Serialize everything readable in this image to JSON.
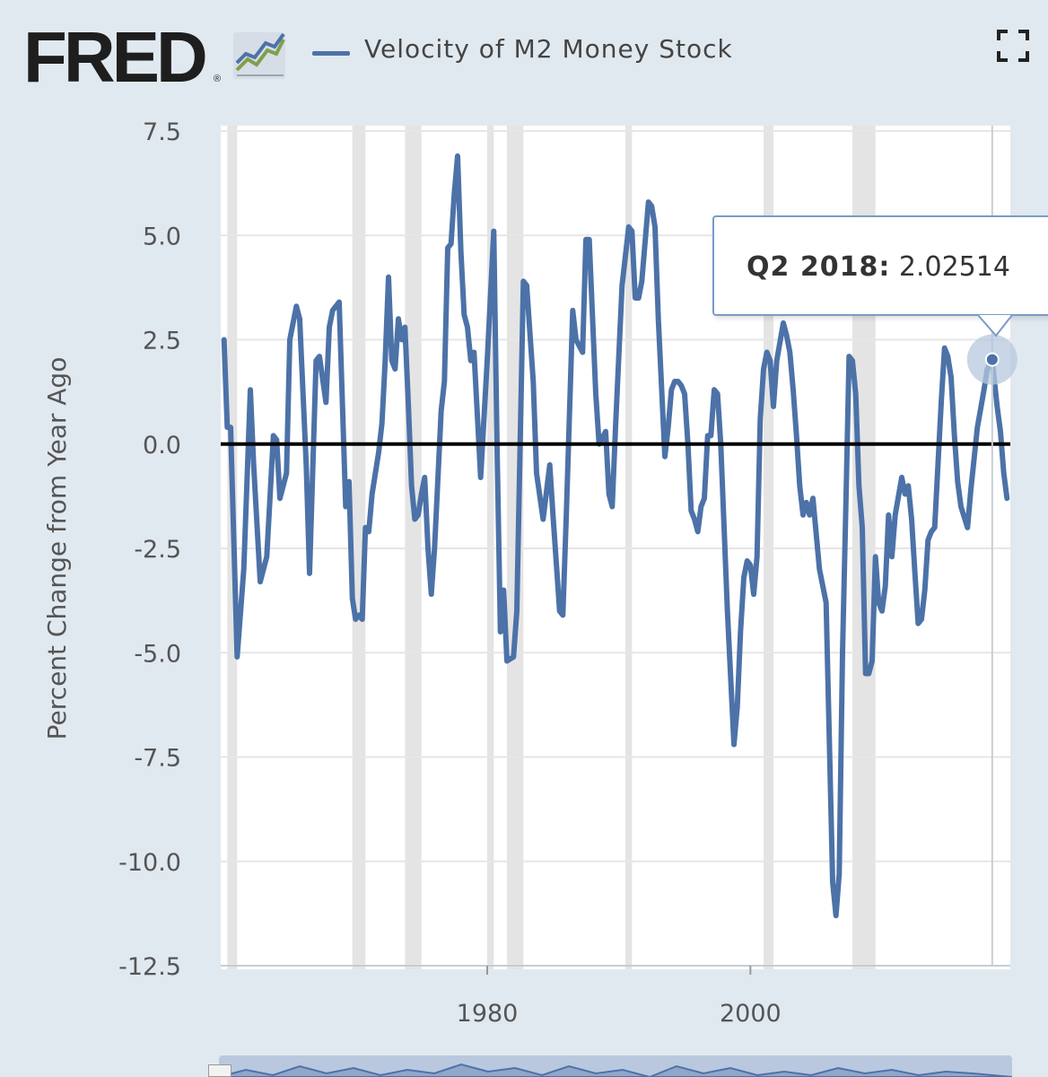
{
  "header": {
    "logo_text": "FRED",
    "logo_reg": "®",
    "logo_icon": "line-chart-icon",
    "series_label": "Velocity of M2 Money Stock",
    "expand_icon": "fullscreen-expand-icon"
  },
  "tooltip": {
    "period": "Q2 2018:",
    "value": "2.02514"
  },
  "colors": {
    "series": "#4c72a8",
    "zero_line": "#000000",
    "recession": "#e4e4e4",
    "grid": "#e6e6e6",
    "background": "#e1e9f0"
  },
  "chart_data": {
    "type": "line",
    "title": "Velocity of M2 Money Stock",
    "xlabel": "",
    "ylabel": "Percent Change from Year Ago",
    "xlim": [
      1959.75,
      2019.75
    ],
    "ylim": [
      -12.5,
      7.5
    ],
    "yticks": [
      7.5,
      5.0,
      2.5,
      0.0,
      -2.5,
      -5.0,
      -7.5,
      -10.0,
      -12.5
    ],
    "ytick_labels": [
      "7.5",
      "5.0",
      "2.5",
      "0.0",
      "-2.5",
      "-5.0",
      "-7.5",
      "-10.0",
      "-12.5"
    ],
    "xticks": [
      1980,
      2000
    ],
    "xtick_labels": [
      "1980",
      "2000"
    ],
    "recessions": [
      [
        1960.25,
        1961.0
      ],
      [
        1969.75,
        1970.75
      ],
      [
        1973.75,
        1975.0
      ],
      [
        1980.0,
        1980.5
      ],
      [
        1981.5,
        1982.75
      ],
      [
        1990.5,
        1991.0
      ],
      [
        2001.0,
        2001.75
      ],
      [
        2007.75,
        2009.5
      ]
    ],
    "highlight": {
      "x": 2018.375,
      "y": 2.02514,
      "label": "Q2 2018: 2.02514"
    },
    "series": [
      {
        "name": "Velocity of M2 Money Stock",
        "points": [
          [
            1960.0,
            2.5
          ],
          [
            1960.25,
            0.4
          ],
          [
            1960.5,
            0.4
          ],
          [
            1961.0,
            -5.1
          ],
          [
            1961.5,
            -3.0
          ],
          [
            1962.0,
            1.3
          ],
          [
            1962.25,
            -0.5
          ],
          [
            1962.75,
            -3.3
          ],
          [
            1963.25,
            -2.7
          ],
          [
            1963.75,
            0.2
          ],
          [
            1964.0,
            0.1
          ],
          [
            1964.25,
            -1.3
          ],
          [
            1964.75,
            -0.7
          ],
          [
            1965.0,
            2.5
          ],
          [
            1965.5,
            3.3
          ],
          [
            1965.75,
            3.0
          ],
          [
            1966.25,
            -0.5
          ],
          [
            1966.5,
            -3.1
          ],
          [
            1967.0,
            2.0
          ],
          [
            1967.25,
            2.1
          ],
          [
            1967.75,
            1.0
          ],
          [
            1968.0,
            2.8
          ],
          [
            1968.25,
            3.2
          ],
          [
            1968.75,
            3.4
          ],
          [
            1969.25,
            -1.5
          ],
          [
            1969.5,
            -0.9
          ],
          [
            1969.75,
            -3.7
          ],
          [
            1970.0,
            -4.2
          ],
          [
            1970.25,
            -4.1
          ],
          [
            1970.5,
            -4.2
          ],
          [
            1970.75,
            -2.0
          ],
          [
            1971.0,
            -2.1
          ],
          [
            1971.25,
            -1.2
          ],
          [
            1971.75,
            -0.2
          ],
          [
            1972.0,
            0.5
          ],
          [
            1972.25,
            2.0
          ],
          [
            1972.5,
            4.0
          ],
          [
            1972.75,
            2.0
          ],
          [
            1973.0,
            1.8
          ],
          [
            1973.25,
            3.0
          ],
          [
            1973.5,
            2.5
          ],
          [
            1973.75,
            2.8
          ],
          [
            1974.0,
            1.0
          ],
          [
            1974.25,
            -1.0
          ],
          [
            1974.5,
            -1.8
          ],
          [
            1974.75,
            -1.7
          ],
          [
            1975.0,
            -1.2
          ],
          [
            1975.25,
            -0.8
          ],
          [
            1975.5,
            -2.5
          ],
          [
            1975.75,
            -3.6
          ],
          [
            1976.0,
            -2.5
          ],
          [
            1976.5,
            0.8
          ],
          [
            1976.75,
            1.5
          ],
          [
            1977.0,
            4.7
          ],
          [
            1977.25,
            4.8
          ],
          [
            1977.5,
            6.0
          ],
          [
            1977.75,
            6.9
          ],
          [
            1978.0,
            4.6
          ],
          [
            1978.25,
            3.1
          ],
          [
            1978.5,
            2.8
          ],
          [
            1978.75,
            2.0
          ],
          [
            1979.0,
            2.2
          ],
          [
            1979.5,
            -0.8
          ],
          [
            1980.0,
            2.0
          ],
          [
            1980.5,
            5.1
          ],
          [
            1980.75,
            -0.1
          ],
          [
            1981.0,
            -4.5
          ],
          [
            1981.25,
            -3.5
          ],
          [
            1981.5,
            -5.2
          ],
          [
            1982.0,
            -5.1
          ],
          [
            1982.25,
            -4.0
          ],
          [
            1982.75,
            3.9
          ],
          [
            1983.0,
            3.8
          ],
          [
            1983.5,
            1.5
          ],
          [
            1983.75,
            -0.7
          ],
          [
            1984.25,
            -1.8
          ],
          [
            1984.75,
            -0.5
          ],
          [
            1985.0,
            -1.7
          ],
          [
            1985.5,
            -4.0
          ],
          [
            1985.75,
            -4.1
          ],
          [
            1986.0,
            -1.8
          ],
          [
            1986.5,
            3.2
          ],
          [
            1986.75,
            2.5
          ],
          [
            1987.25,
            2.2
          ],
          [
            1987.5,
            4.9
          ],
          [
            1987.75,
            4.9
          ],
          [
            1988.25,
            1.2
          ],
          [
            1988.5,
            0.0
          ],
          [
            1989.0,
            0.3
          ],
          [
            1989.25,
            -1.2
          ],
          [
            1989.5,
            -1.5
          ],
          [
            1989.75,
            0.4
          ],
          [
            1990.25,
            3.8
          ],
          [
            1990.75,
            5.2
          ],
          [
            1991.0,
            5.1
          ],
          [
            1991.25,
            3.5
          ],
          [
            1991.5,
            3.5
          ],
          [
            1991.75,
            3.9
          ],
          [
            1992.25,
            5.8
          ],
          [
            1992.5,
            5.7
          ],
          [
            1992.75,
            5.2
          ],
          [
            1993.0,
            3.0
          ],
          [
            1993.5,
            -0.3
          ],
          [
            1993.75,
            0.4
          ],
          [
            1994.0,
            1.3
          ],
          [
            1994.25,
            1.5
          ],
          [
            1994.5,
            1.5
          ],
          [
            1994.75,
            1.4
          ],
          [
            1995.0,
            1.2
          ],
          [
            1995.25,
            0.0
          ],
          [
            1995.5,
            -1.6
          ],
          [
            1995.75,
            -1.8
          ],
          [
            1996.0,
            -2.1
          ],
          [
            1996.25,
            -1.5
          ],
          [
            1996.5,
            -1.3
          ],
          [
            1996.75,
            0.2
          ],
          [
            1997.0,
            0.2
          ],
          [
            1997.25,
            1.3
          ],
          [
            1997.5,
            1.2
          ],
          [
            1997.75,
            0.0
          ],
          [
            1998.0,
            -2.0
          ],
          [
            1998.25,
            -4.0
          ],
          [
            1998.75,
            -7.2
          ],
          [
            1999.0,
            -6.3
          ],
          [
            1999.25,
            -4.5
          ],
          [
            1999.5,
            -3.2
          ],
          [
            1999.75,
            -2.8
          ],
          [
            2000.0,
            -2.9
          ],
          [
            2000.25,
            -3.6
          ],
          [
            2000.5,
            -2.7
          ],
          [
            2000.75,
            0.6
          ],
          [
            2001.0,
            1.8
          ],
          [
            2001.25,
            2.2
          ],
          [
            2001.5,
            2.0
          ],
          [
            2001.75,
            0.9
          ],
          [
            2002.0,
            2.0
          ],
          [
            2002.5,
            2.9
          ],
          [
            2002.75,
            2.6
          ],
          [
            2003.0,
            2.2
          ],
          [
            2003.25,
            1.3
          ],
          [
            2003.5,
            0.2
          ],
          [
            2003.75,
            -1.0
          ],
          [
            2004.0,
            -1.7
          ],
          [
            2004.25,
            -1.4
          ],
          [
            2004.5,
            -1.7
          ],
          [
            2004.75,
            -1.3
          ],
          [
            2005.25,
            -3.0
          ],
          [
            2005.75,
            -3.8
          ],
          [
            2006.25,
            -10.5
          ],
          [
            2006.5,
            -11.3
          ],
          [
            2006.75,
            -10.3
          ],
          [
            2007.0,
            -5.0
          ],
          [
            2007.25,
            -1.5
          ],
          [
            2007.5,
            2.1
          ],
          [
            2007.75,
            2.0
          ],
          [
            2008.0,
            1.2
          ],
          [
            2008.25,
            -1.0
          ],
          [
            2008.5,
            -2.0
          ],
          [
            2008.75,
            -5.5
          ],
          [
            2009.0,
            -5.5
          ],
          [
            2009.25,
            -5.2
          ],
          [
            2009.5,
            -2.7
          ],
          [
            2009.75,
            -3.8
          ],
          [
            2010.0,
            -4.0
          ],
          [
            2010.25,
            -3.4
          ],
          [
            2010.5,
            -1.7
          ],
          [
            2010.75,
            -2.7
          ],
          [
            2011.0,
            -1.7
          ],
          [
            2011.5,
            -0.8
          ],
          [
            2011.75,
            -1.2
          ],
          [
            2012.0,
            -1.0
          ],
          [
            2012.25,
            -1.8
          ],
          [
            2012.5,
            -3.1
          ],
          [
            2012.75,
            -4.3
          ],
          [
            2013.0,
            -4.2
          ],
          [
            2013.25,
            -3.5
          ],
          [
            2013.5,
            -2.3
          ],
          [
            2013.75,
            -2.1
          ],
          [
            2014.0,
            -2.0
          ],
          [
            2014.5,
            1.0
          ],
          [
            2014.75,
            2.3
          ],
          [
            2015.0,
            2.1
          ],
          [
            2015.25,
            1.6
          ],
          [
            2015.5,
            0.2
          ],
          [
            2015.75,
            -0.9
          ],
          [
            2016.0,
            -1.5
          ],
          [
            2016.5,
            -2.0
          ],
          [
            2016.75,
            -1.1
          ],
          [
            2017.25,
            0.4
          ],
          [
            2017.75,
            1.3
          ],
          [
            2018.0,
            1.8
          ],
          [
            2018.375,
            2.02514
          ],
          [
            2018.75,
            0.9
          ],
          [
            2019.0,
            0.3
          ],
          [
            2019.25,
            -0.7
          ],
          [
            2019.5,
            -1.3
          ]
        ]
      }
    ]
  }
}
